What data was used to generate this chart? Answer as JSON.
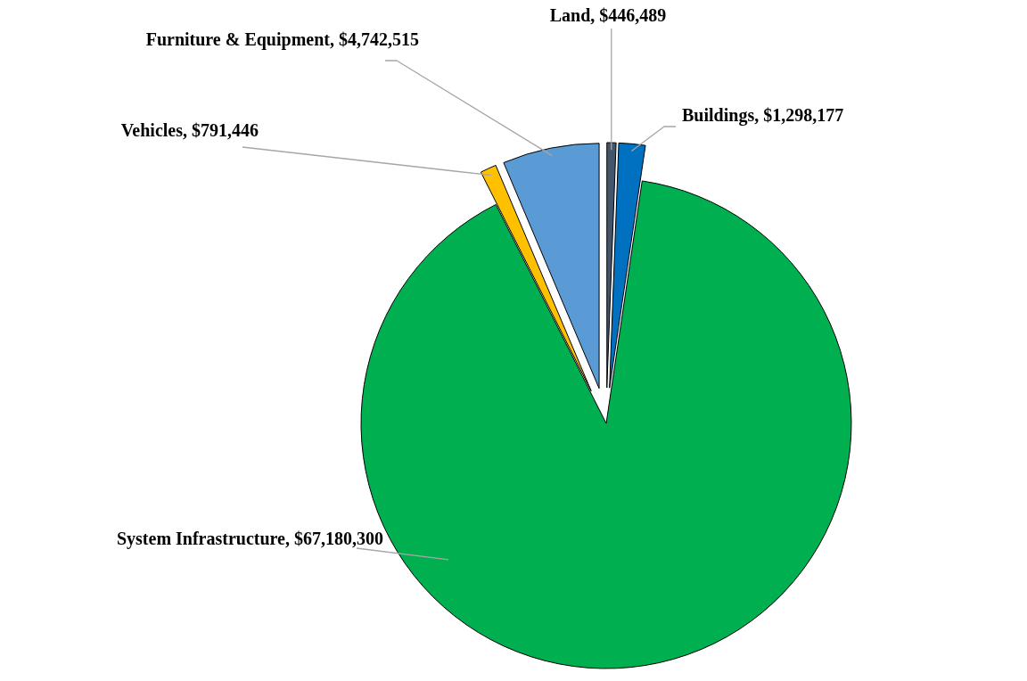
{
  "chart_data": {
    "type": "pie",
    "categories": [
      "Land",
      "Buildings",
      "System Infrastructure",
      "Vehicles",
      "Furniture & Equipment"
    ],
    "values": [
      446489,
      1298177,
      67180300,
      791446,
      4742515
    ],
    "value_labels": [
      "$446,489",
      "$1,298,177",
      "$67,180,300",
      "$791,446",
      "$4,742,515"
    ],
    "colors": [
      "#44546a",
      "#0070c0",
      "#00b050",
      "#ffc000",
      "#5b9bd5"
    ]
  }
}
